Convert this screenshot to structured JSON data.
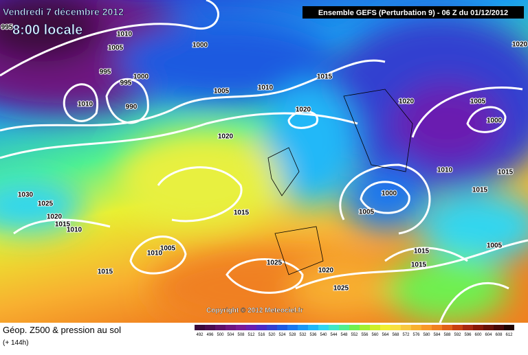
{
  "header": {
    "date": "Vendredi 7 décembre 2012",
    "time": "8:00 locale",
    "run": "Ensemble GEFS (Perturbation 9)  -  06 Z du 01/12/2012"
  },
  "map": {
    "copyright": "Copyright © 2012 Meteociel.fr",
    "isobar_labels": [
      "995",
      "1010",
      "1005",
      "1000",
      "995",
      "1000",
      "995",
      "990",
      "1010",
      "1005",
      "1010",
      "1015",
      "1020",
      "1020",
      "1020",
      "1005",
      "1000",
      "1020",
      "1010",
      "1015",
      "1015",
      "1000",
      "1005",
      "1030",
      "1025",
      "1020",
      "1015",
      "1010",
      "1015",
      "1005",
      "1010",
      "1015",
      "1025",
      "1020",
      "1025",
      "1015",
      "1015",
      "1005"
    ]
  },
  "footer": {
    "title": "Géop. Z500 & pression au sol",
    "lead": "(+ 144h)"
  },
  "scale": {
    "labels": [
      492,
      496,
      500,
      504,
      508,
      512,
      516,
      520,
      524,
      528,
      532,
      536,
      540,
      544,
      548,
      552,
      556,
      560,
      564,
      568,
      572,
      576,
      580,
      584,
      588,
      592,
      596,
      600,
      604,
      608,
      612
    ],
    "colors": [
      "#3b0a3b",
      "#4b0c4f",
      "#5e1068",
      "#6e1580",
      "#7a1a96",
      "#6a1fb0",
      "#4c2ac4",
      "#3340d0",
      "#1d5ae0",
      "#1a78ee",
      "#1b98f5",
      "#20b8f8",
      "#30d6f0",
      "#3fe8c8",
      "#50f090",
      "#70f050",
      "#a0f030",
      "#cef028",
      "#f0f030",
      "#f8e040",
      "#f8c840",
      "#f8b030",
      "#f89828",
      "#f08020",
      "#e06018",
      "#c84010",
      "#a82810",
      "#881808",
      "#681008",
      "#480808",
      "#200404"
    ]
  }
}
